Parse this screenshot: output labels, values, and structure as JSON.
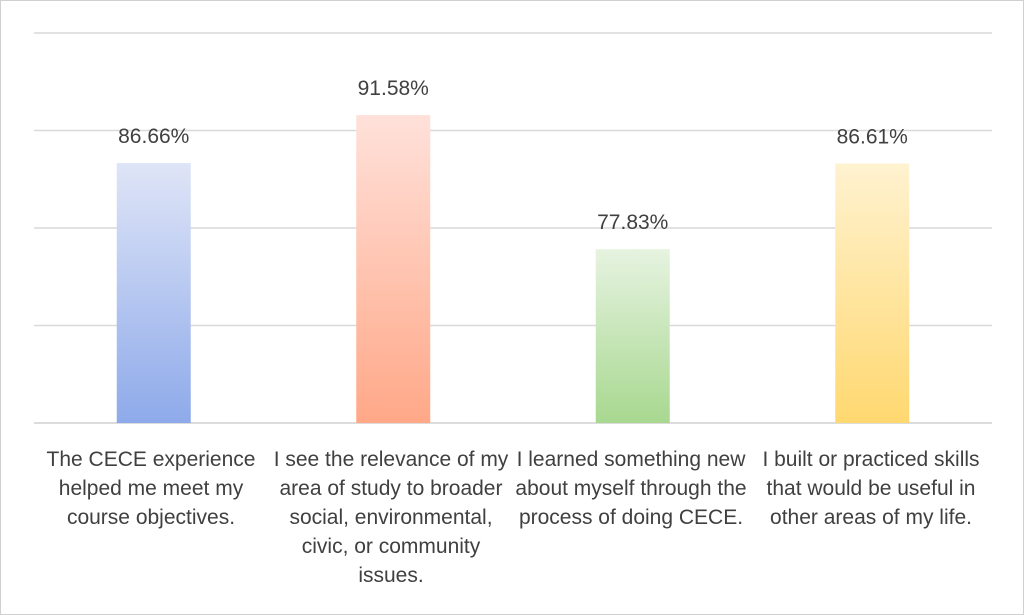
{
  "chart_data": {
    "type": "bar",
    "categories": [
      "The CECE experience helped me meet my course objectives.",
      "I see the relevance of my area of study to broader social, environmental, civic, or community issues.",
      "I learned something new about myself through the process of doing CECE.",
      "I built or practiced skills that would be useful in other areas of my life."
    ],
    "values": [
      86.66,
      91.58,
      77.83,
      86.61
    ],
    "data_labels": [
      "86.66%",
      "91.58%",
      "77.83%",
      "86.61%"
    ],
    "ylim": [
      60,
      100
    ],
    "grid": true,
    "colors": [
      {
        "top": "#dfe5f7",
        "bottom": "#8eaaea"
      },
      {
        "top": "#ffe1da",
        "bottom": "#ffa888"
      },
      {
        "top": "#e6f3e0",
        "bottom": "#a8d890"
      },
      {
        "top": "#fff2d0",
        "bottom": "#ffd870"
      }
    ]
  }
}
